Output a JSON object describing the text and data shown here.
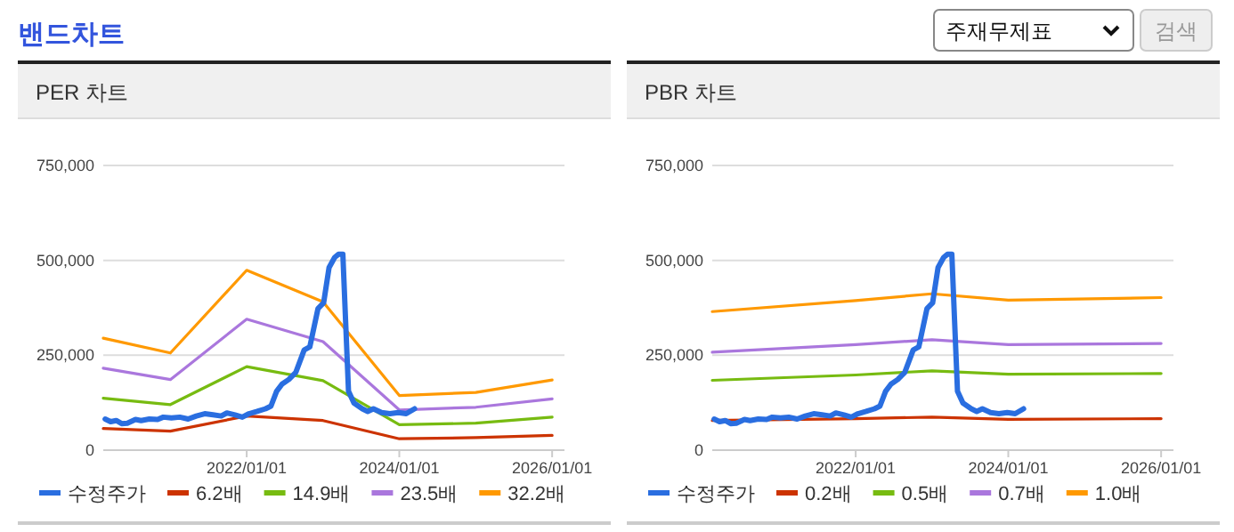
{
  "chart_data": [
    {
      "type": "other",
      "title": "밴드차트",
      "annotations": [
        "주재무제표",
        "검색"
      ]
    },
    {
      "type": "line",
      "title": "PER 차트",
      "grid": "y",
      "legend": "bottom",
      "xlim": [
        "2020-02-15",
        "2026-03-01"
      ],
      "ylim": [
        0,
        750000
      ],
      "yticks": [
        {
          "value": 0,
          "label": "0"
        },
        {
          "value": 250000,
          "label": "250,000"
        },
        {
          "value": 500000,
          "label": "500,000"
        },
        {
          "value": 750000,
          "label": "750,000"
        }
      ],
      "xticks": [
        {
          "value": "2022-01-01",
          "label": "2022/01/01"
        },
        {
          "value": "2024-01-01",
          "label": "2024/01/01"
        },
        {
          "value": "2026-01-01",
          "label": "2026/01/01"
        }
      ],
      "series": [
        {
          "name": "수정주가",
          "color": "#2a6ee0",
          "x": [
            "2020-02-24",
            "2020-03-21",
            "2020-04-17",
            "2020-05-13",
            "2020-06-09",
            "2020-07-18",
            "2020-08-14",
            "2020-09-22",
            "2020-11-01",
            "2020-11-28",
            "2021-01-06",
            "2021-02-15",
            "2021-03-27",
            "2021-05-05",
            "2021-06-14",
            "2021-07-24",
            "2021-09-01",
            "2021-09-28",
            "2021-11-06",
            "2021-12-11",
            "2022-01-12",
            "2022-02-20",
            "2022-04-01",
            "2022-04-27",
            "2022-05-24",
            "2022-06-19",
            "2022-07-21",
            "2022-08-24",
            "2022-10-03",
            "2022-10-30",
            "2022-12-08",
            "2023-01-04",
            "2023-01-30",
            "2023-02-26",
            "2023-03-16",
            "2023-04-06",
            "2023-04-19",
            "2023-05-03",
            "2023-05-29",
            "2023-07-08",
            "2023-08-03",
            "2023-08-30",
            "2023-10-08",
            "2023-11-17",
            "2023-12-27",
            "2024-02-03",
            "2024-03-14"
          ],
          "values": [
            82000,
            75000,
            78000,
            70000,
            71000,
            81000,
            78000,
            82000,
            81000,
            87000,
            85000,
            87000,
            82000,
            90000,
            96000,
            93000,
            90000,
            98000,
            93000,
            87000,
            96000,
            102000,
            109000,
            116000,
            155000,
            174000,
            186000,
            205000,
            264000,
            272000,
            373000,
            388000,
            481000,
            508000,
            516000,
            516000,
            342000,
            155000,
            124000,
            109000,
            102000,
            109000,
            99000,
            96000,
            99000,
            96000,
            109000
          ]
        },
        {
          "name": "6.2배",
          "color": "#cc3300",
          "x": [
            "2020-02-15",
            "2021-01-01",
            "2022-01-01",
            "2023-01-01",
            "2024-01-01",
            "2025-01-01",
            "2026-01-01"
          ],
          "values": [
            57000,
            50000,
            90000,
            78000,
            30000,
            33000,
            39000
          ]
        },
        {
          "name": "14.9배",
          "color": "#77bb11",
          "x": [
            "2020-02-15",
            "2021-01-01",
            "2022-01-01",
            "2023-01-01",
            "2024-01-01",
            "2025-01-01",
            "2026-01-01"
          ],
          "values": [
            137000,
            120000,
            220000,
            183000,
            67000,
            71000,
            87000
          ]
        },
        {
          "name": "23.5배",
          "color": "#aa77dd",
          "x": [
            "2020-02-15",
            "2021-01-01",
            "2022-01-01",
            "2023-01-01",
            "2024-01-01",
            "2025-01-01",
            "2026-01-01"
          ],
          "values": [
            216000,
            186000,
            345000,
            286000,
            106000,
            113000,
            135000
          ]
        },
        {
          "name": "32.2배",
          "color": "#ff9900",
          "x": [
            "2020-02-15",
            "2021-01-01",
            "2022-01-01",
            "2023-01-01",
            "2024-01-01",
            "2025-01-01",
            "2026-01-01"
          ],
          "values": [
            295000,
            256000,
            474000,
            391000,
            144000,
            152000,
            185000
          ]
        }
      ]
    },
    {
      "type": "line",
      "title": "PBR 차트",
      "grid": "y",
      "legend": "bottom",
      "xlim": [
        "2020-02-15",
        "2026-03-01"
      ],
      "ylim": [
        0,
        750000
      ],
      "yticks": [
        {
          "value": 0,
          "label": "0"
        },
        {
          "value": 250000,
          "label": "250,000"
        },
        {
          "value": 500000,
          "label": "500,000"
        },
        {
          "value": 750000,
          "label": "750,000"
        }
      ],
      "xticks": [
        {
          "value": "2022-01-01",
          "label": "2022/01/01"
        },
        {
          "value": "2024-01-01",
          "label": "2024/01/01"
        },
        {
          "value": "2026-01-01",
          "label": "2026/01/01"
        }
      ],
      "series": [
        {
          "name": "수정주가",
          "color": "#2a6ee0",
          "x": [
            "2020-02-24",
            "2020-03-21",
            "2020-04-17",
            "2020-05-13",
            "2020-06-09",
            "2020-07-18",
            "2020-08-14",
            "2020-09-22",
            "2020-11-01",
            "2020-11-28",
            "2021-01-06",
            "2021-02-15",
            "2021-03-27",
            "2021-05-05",
            "2021-06-14",
            "2021-07-24",
            "2021-09-01",
            "2021-09-28",
            "2021-11-06",
            "2021-12-11",
            "2022-01-12",
            "2022-02-20",
            "2022-04-01",
            "2022-04-27",
            "2022-05-24",
            "2022-06-19",
            "2022-07-21",
            "2022-08-24",
            "2022-10-03",
            "2022-10-30",
            "2022-12-08",
            "2023-01-04",
            "2023-01-30",
            "2023-02-26",
            "2023-03-16",
            "2023-04-06",
            "2023-04-19",
            "2023-05-03",
            "2023-05-29",
            "2023-07-08",
            "2023-08-03",
            "2023-08-30",
            "2023-10-08",
            "2023-11-17",
            "2023-12-27",
            "2024-02-03",
            "2024-03-14"
          ],
          "values": [
            82000,
            75000,
            78000,
            70000,
            71000,
            81000,
            78000,
            82000,
            81000,
            87000,
            85000,
            87000,
            82000,
            90000,
            96000,
            93000,
            90000,
            98000,
            93000,
            87000,
            96000,
            102000,
            109000,
            116000,
            155000,
            174000,
            186000,
            205000,
            264000,
            272000,
            373000,
            388000,
            481000,
            508000,
            516000,
            516000,
            342000,
            155000,
            124000,
            109000,
            102000,
            109000,
            99000,
            96000,
            99000,
            96000,
            109000
          ]
        },
        {
          "name": "0.2배",
          "color": "#cc3300",
          "x": [
            "2020-02-15",
            "2022-01-01",
            "2023-01-01",
            "2024-01-01",
            "2026-01-01"
          ],
          "values": [
            78000,
            83000,
            87000,
            81000,
            83000
          ]
        },
        {
          "name": "0.5배",
          "color": "#77bb11",
          "x": [
            "2020-02-15",
            "2022-01-01",
            "2023-01-01",
            "2024-01-01",
            "2026-01-01"
          ],
          "values": [
            184000,
            198000,
            209000,
            200000,
            202000
          ]
        },
        {
          "name": "0.7배",
          "color": "#aa77dd",
          "x": [
            "2020-02-15",
            "2022-01-01",
            "2023-01-01",
            "2024-01-01",
            "2026-01-01"
          ],
          "values": [
            258000,
            278000,
            291000,
            278000,
            281000
          ]
        },
        {
          "name": "1.0배",
          "color": "#ff9900",
          "x": [
            "2020-02-15",
            "2022-01-01",
            "2023-01-01",
            "2024-01-01",
            "2026-01-01"
          ],
          "values": [
            365000,
            394000,
            412000,
            395000,
            402000
          ]
        }
      ]
    }
  ]
}
